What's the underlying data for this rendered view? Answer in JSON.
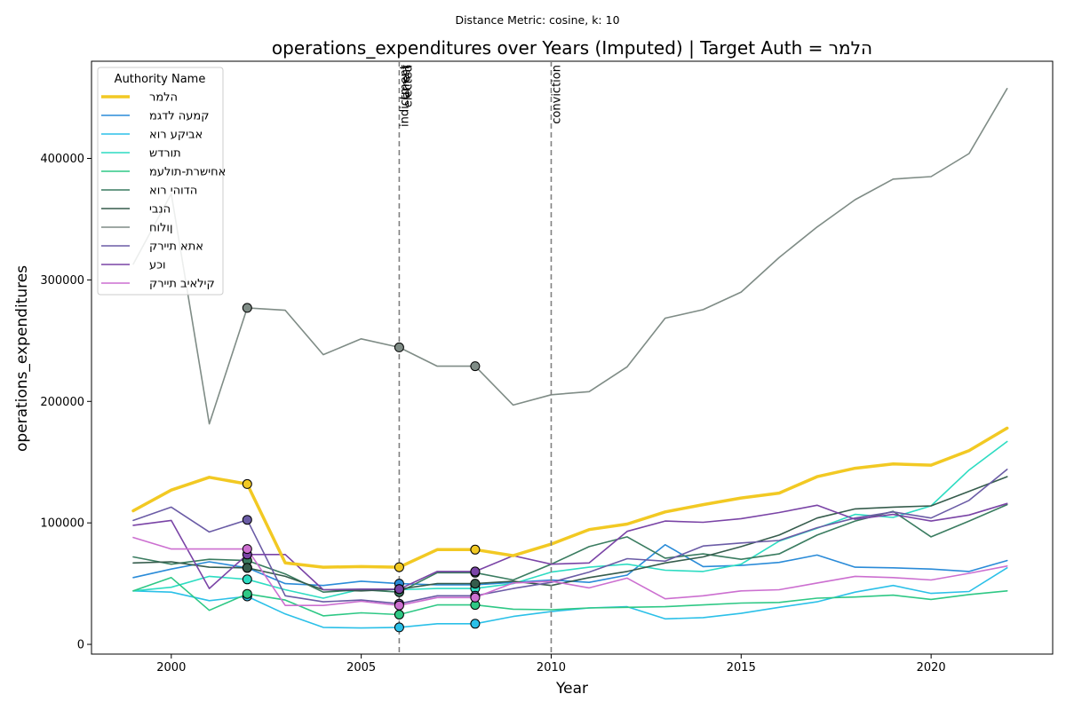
{
  "suptitle": "Distance Metric: cosine, k: 10",
  "chart_data": {
    "type": "line",
    "title": "operations_expenditures over Years (Imputed) | Target Auth = הלמר",
    "xlabel": "Year",
    "ylabel": "operations_expenditures",
    "xlim": [
      1997.9,
      2023.2
    ],
    "ylim": [
      -8000,
      480000
    ],
    "x_ticks": [
      2000,
      2005,
      2010,
      2015,
      2020
    ],
    "y_ticks": [
      0,
      100000,
      200000,
      300000,
      400000
    ],
    "x": [
      1999,
      2000,
      2001,
      2002,
      2003,
      2004,
      2005,
      2006,
      2007,
      2008,
      2009,
      2010,
      2011,
      2012,
      2013,
      2014,
      2015,
      2016,
      2017,
      2018,
      2019,
      2020,
      2021,
      2022
    ],
    "events": [
      {
        "year": 2006,
        "label": "indictment"
      },
      {
        "year": 2006,
        "label": "arrest"
      },
      {
        "year": 2006,
        "label": "elected"
      },
      {
        "year": 2010,
        "label": "conviction"
      }
    ],
    "marker_years": [
      2002,
      2006,
      2008
    ],
    "legend_title": "Authority Name",
    "legend_position": "upper-left",
    "grid": false,
    "series": [
      {
        "name": "הלמר",
        "color": "#f2c923",
        "width": 3.5,
        "values": [
          110000,
          127000,
          137500,
          132000,
          67000,
          63500,
          64000,
          63500,
          78000,
          78000,
          73000,
          82500,
          94500,
          99000,
          109000,
          115000,
          120500,
          124500,
          138000,
          145000,
          148500,
          147500,
          159500,
          178000
        ]
      },
      {
        "name": "קמעה לדגמ",
        "color": "#2a8bd8",
        "width": 1.6,
        "values": [
          55000,
          62000,
          68000,
          63000,
          50000,
          48500,
          52000,
          50000,
          49000,
          49000,
          51000,
          53000,
          51000,
          57000,
          82000,
          64000,
          65000,
          67500,
          73500,
          63500,
          63000,
          62000,
          60000,
          69000
        ]
      },
      {
        "name": "אביקע רוא",
        "color": "#2bc0e8",
        "width": 1.6,
        "values": [
          44000,
          43000,
          36000,
          39500,
          25000,
          14000,
          13500,
          14000,
          17000,
          17000,
          23000,
          27000,
          30000,
          31000,
          21000,
          22000,
          25500,
          30500,
          35000,
          43000,
          48500,
          42000,
          43500,
          63000
        ]
      },
      {
        "name": "תורדש",
        "color": "#2ddcc2",
        "width": 1.6,
        "values": [
          44000,
          47000,
          56000,
          53500,
          45000,
          38000,
          45500,
          45000,
          46000,
          46000,
          50000,
          59500,
          63500,
          66000,
          61000,
          60000,
          66000,
          85000,
          95500,
          107000,
          104500,
          114000,
          143500,
          167000
        ]
      },
      {
        "name": "אחישרת-תולעמ",
        "color": "#2ec885",
        "width": 1.6,
        "values": [
          44000,
          55000,
          28000,
          41500,
          36500,
          23500,
          26000,
          24500,
          32500,
          32500,
          29000,
          28500,
          30000,
          30500,
          31000,
          32500,
          34000,
          34500,
          38000,
          39000,
          40500,
          37000,
          41000,
          44000
        ]
      },
      {
        "name": "הדוהי רוא",
        "color": "#3a7c60",
        "width": 1.6,
        "values": [
          72000,
          66000,
          70000,
          69000,
          58000,
          43000,
          45000,
          43000,
          59000,
          59000,
          53000,
          66000,
          80500,
          88500,
          71000,
          74500,
          70000,
          74500,
          90000,
          101500,
          109500,
          88500,
          101500,
          115000
        ]
      },
      {
        "name": "הנבי",
        "color": "#355c4c",
        "width": 1.6,
        "values": [
          67000,
          68000,
          63500,
          63000,
          56000,
          45000,
          44000,
          45500,
          50000,
          50000,
          52000,
          48500,
          55000,
          60000,
          67000,
          72000,
          80500,
          90000,
          104000,
          111500,
          113000,
          114000,
          126000,
          138000
        ]
      },
      {
        "name": "ןולוח",
        "color": "#7f8c86",
        "width": 1.6,
        "values": [
          313000,
          371000,
          181500,
          277000,
          275000,
          238500,
          251500,
          244500,
          229000,
          229000,
          197000,
          205500,
          208000,
          228500,
          268500,
          275500,
          290000,
          318500,
          343500,
          366000,
          383000,
          385000,
          404000,
          457500
        ]
      },
      {
        "name": "אתא תיירק",
        "color": "#6b5ca6",
        "width": 1.6,
        "values": [
          102000,
          113000,
          92500,
          102500,
          40000,
          35000,
          36500,
          33500,
          40000,
          40000,
          46000,
          51000,
          59500,
          70500,
          68500,
          81000,
          83500,
          85500,
          96000,
          104000,
          109000,
          104000,
          118500,
          144000
        ]
      },
      {
        "name": "וכע",
        "color": "#7a44a6",
        "width": 1.6,
        "values": [
          98000,
          102000,
          46000,
          74000,
          74000,
          45000,
          45500,
          45500,
          60000,
          60000,
          73000,
          66000,
          67000,
          93000,
          101500,
          100500,
          103500,
          108500,
          114500,
          103000,
          107000,
          101500,
          106500,
          116000
        ]
      },
      {
        "name": "קילאיב תיירק",
        "color": "#cc6fd0",
        "width": 1.6,
        "values": [
          88000,
          78500,
          78500,
          78500,
          32000,
          32000,
          35500,
          32000,
          38500,
          38500,
          50500,
          52000,
          46500,
          54500,
          37500,
          40000,
          44000,
          45000,
          50500,
          56000,
          55000,
          53000,
          58500,
          64500
        ]
      }
    ]
  }
}
